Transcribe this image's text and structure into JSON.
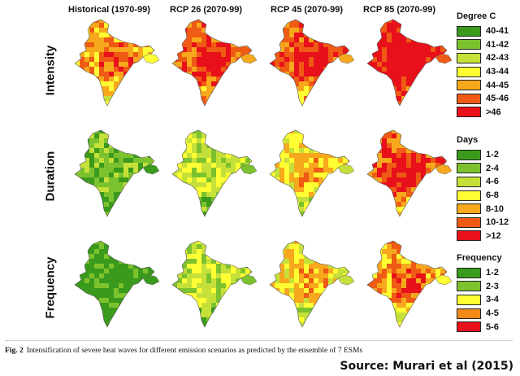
{
  "columns": [
    "Historical (1970-99)",
    "RCP 26 (2070-99)",
    "RCP 45 (2070-99)",
    "RCP 85 (2070-99)"
  ],
  "rows": [
    "Intensity",
    "Duration",
    "Frequency"
  ],
  "legends": [
    {
      "title": "Degree C",
      "items": [
        {
          "label": "40-41",
          "color": "#3a9a1c"
        },
        {
          "label": "41-42",
          "color": "#7cc22e"
        },
        {
          "label": "42-43",
          "color": "#c6e03a"
        },
        {
          "label": "43-44",
          "color": "#ffff33"
        },
        {
          "label": "44-45",
          "color": "#f7a81c"
        },
        {
          "label": "45-46",
          "color": "#ef5a14"
        },
        {
          "label": ">46",
          "color": "#e8101a"
        }
      ]
    },
    {
      "title": "Days",
      "items": [
        {
          "label": "1-2",
          "color": "#3a9a1c"
        },
        {
          "label": "2-4",
          "color": "#7cc22e"
        },
        {
          "label": "4-6",
          "color": "#c6e03a"
        },
        {
          "label": "6-8",
          "color": "#ffff33"
        },
        {
          "label": "8-10",
          "color": "#f7a81c"
        },
        {
          "label": "10-12",
          "color": "#ef5a14"
        },
        {
          "label": ">12",
          "color": "#e8101a"
        }
      ]
    },
    {
      "title": "Frequency",
      "items": [
        {
          "label": "1-2",
          "color": "#3a9a1c"
        },
        {
          "label": "2-3",
          "color": "#7cc22e"
        },
        {
          "label": "3-4",
          "color": "#ffff33"
        },
        {
          "label": "4-5",
          "color": "#f38a18"
        },
        {
          "label": "5-6",
          "color": "#e8101a"
        }
      ]
    }
  ],
  "map_levels": [
    [
      4,
      5,
      5,
      6
    ],
    [
      1,
      2,
      3,
      5
    ],
    [
      0,
      2,
      3,
      4
    ]
  ],
  "caption": {
    "label": "Fig. 2",
    "text": "Intensification of severe heat waves for different emission scenarios as predicted by the ensemble of 7 ESMs"
  },
  "source": "Source: Murari et al (2015)"
}
